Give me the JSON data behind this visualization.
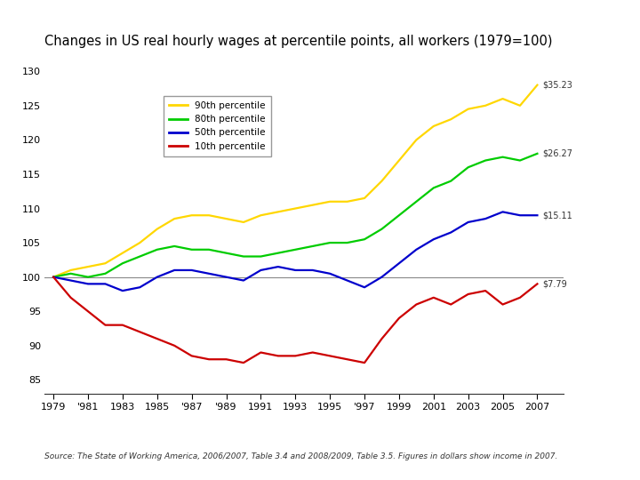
{
  "title": "Changes in US real hourly wages at percentile points, all workers (1979=100)",
  "source": "Source: The State of Working America, 2006/2007, Table 3.4 and 2008/2009, Table 3.5. Figures in dollars show income in 2007.",
  "years": [
    1979,
    1980,
    1981,
    1982,
    1983,
    1984,
    1985,
    1986,
    1987,
    1988,
    1989,
    1990,
    1991,
    1992,
    1993,
    1994,
    1995,
    1996,
    1997,
    1998,
    1999,
    2000,
    2001,
    2002,
    2003,
    2004,
    2005,
    2006,
    2007
  ],
  "p90": [
    100,
    101,
    101.5,
    102,
    103.5,
    105,
    107,
    108.5,
    109,
    109,
    108.5,
    108,
    109,
    109.5,
    110,
    110.5,
    111,
    111,
    111.5,
    114,
    117,
    120,
    122,
    123,
    124.5,
    125,
    126,
    125,
    128
  ],
  "p80": [
    100,
    100.5,
    100,
    100.5,
    102,
    103,
    104,
    104.5,
    104,
    104,
    103.5,
    103,
    103,
    103.5,
    104,
    104.5,
    105,
    105,
    105.5,
    107,
    109,
    111,
    113,
    114,
    116,
    117,
    117.5,
    117,
    118
  ],
  "p50": [
    100,
    99.5,
    99,
    99,
    98,
    98.5,
    100,
    101,
    101,
    100.5,
    100,
    99.5,
    101,
    101.5,
    101,
    101,
    100.5,
    99.5,
    98.5,
    100,
    102,
    104,
    105.5,
    106.5,
    108,
    108.5,
    109.5,
    109,
    109
  ],
  "p10": [
    100,
    97,
    95,
    93,
    93,
    92,
    91,
    90,
    88.5,
    88,
    88,
    87.5,
    89,
    88.5,
    88.5,
    89,
    88.5,
    88,
    87.5,
    91,
    94,
    96,
    97,
    96,
    97.5,
    98,
    96,
    97,
    99
  ],
  "colors": {
    "p90": "#FFD700",
    "p80": "#00CC00",
    "p50": "#0000CC",
    "p10": "#CC0000"
  },
  "labels": {
    "p90": "90th percentile",
    "p80": "80th percentile",
    "p50": "50th percentile",
    "p10": "10th percentile"
  },
  "annotations": {
    "p90": "$35.23",
    "p80": "$26.27",
    "p50": "$15.11",
    "p10": "$7.79"
  },
  "ylim": [
    83,
    132
  ],
  "yticks": [
    85,
    90,
    95,
    100,
    105,
    110,
    115,
    120,
    125,
    130
  ],
  "xlim_min": 1978.5,
  "xlim_max": 2008.5,
  "background_color": "#ffffff",
  "line_color_100": "#888888"
}
